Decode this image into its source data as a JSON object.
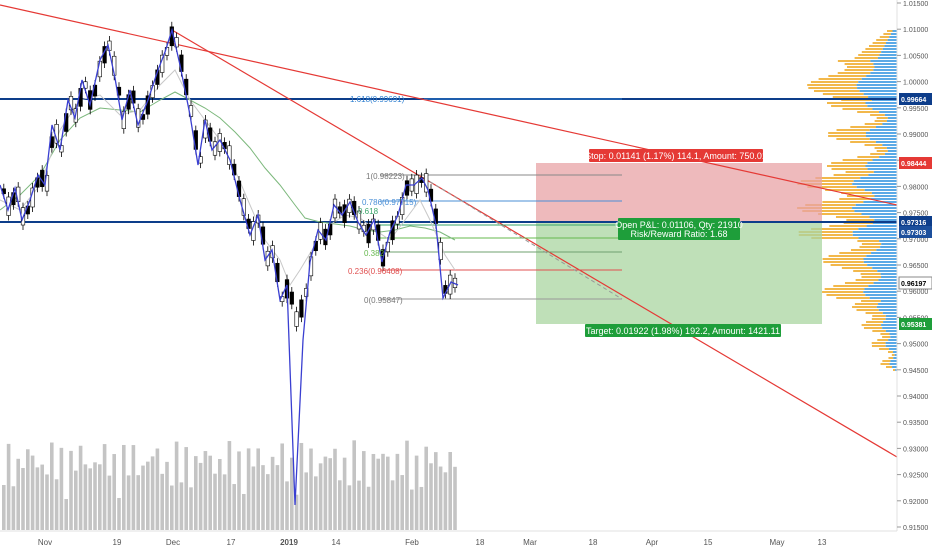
{
  "price_axis": {
    "ticks": [
      "1.01500",
      "1.01000",
      "1.00500",
      "1.00000",
      "0.99500",
      "0.99000",
      "0.98500",
      "0.98000",
      "0.97500",
      "0.97000",
      "0.96500",
      "0.96000",
      "0.95500",
      "0.95000",
      "0.94500",
      "0.94000",
      "0.93500",
      "0.93000",
      "0.92500",
      "0.92000",
      "0.91500"
    ],
    "badges": [
      {
        "label": "0.99664",
        "color": "#0d3d8a"
      },
      {
        "label": "0.98444",
        "color": "#e53935"
      },
      {
        "label": "0.97316",
        "color": "#0d3d8a"
      },
      {
        "label": "0.97303",
        "color": "#1c4f9c"
      },
      {
        "label": "0.96197",
        "color": "#ffffff"
      },
      {
        "label": "0.95381",
        "color": "#1e9e3a"
      }
    ]
  },
  "time_axis": {
    "labels": [
      "Nov",
      "19",
      "Dec",
      "17",
      "2019",
      "14",
      "Feb",
      "18",
      "Mar",
      "18",
      "Apr",
      "15",
      "May",
      "13"
    ]
  },
  "fib": {
    "labels": [
      "1.618(0.99691)",
      "1(0.98223)",
      "0.786(0.97715)",
      "0.618",
      "0.382",
      "0.236(0.96408)",
      "0(0.95847)"
    ]
  },
  "position": {
    "stop_label": "Stop: 0.01141 (1.17%) 114.1, Amount: 750.01",
    "pnl_label": "Open P&L: 0.01106, Qty: 21910",
    "rr_label": "Risk/Reward Ratio: 1.68",
    "target_label": "Target: 0.01922 (1.98%) 192.2, Amount: 1421.11"
  },
  "colors": {
    "candle_up": "#ffffff",
    "candle_down": "#000000",
    "zigzag": "#3a3fd1",
    "trendline": "#e53935",
    "hline": "#0d3d8a",
    "ma_fast": "#bdbdbd",
    "ma_slow": "#7cb87c",
    "stop_zone": "#e8a3a6",
    "target_zone": "#a9d6a0",
    "vp_up": "#f2b84b",
    "vp_down": "#5aa9e6",
    "volume": "#c4c4c4"
  }
}
